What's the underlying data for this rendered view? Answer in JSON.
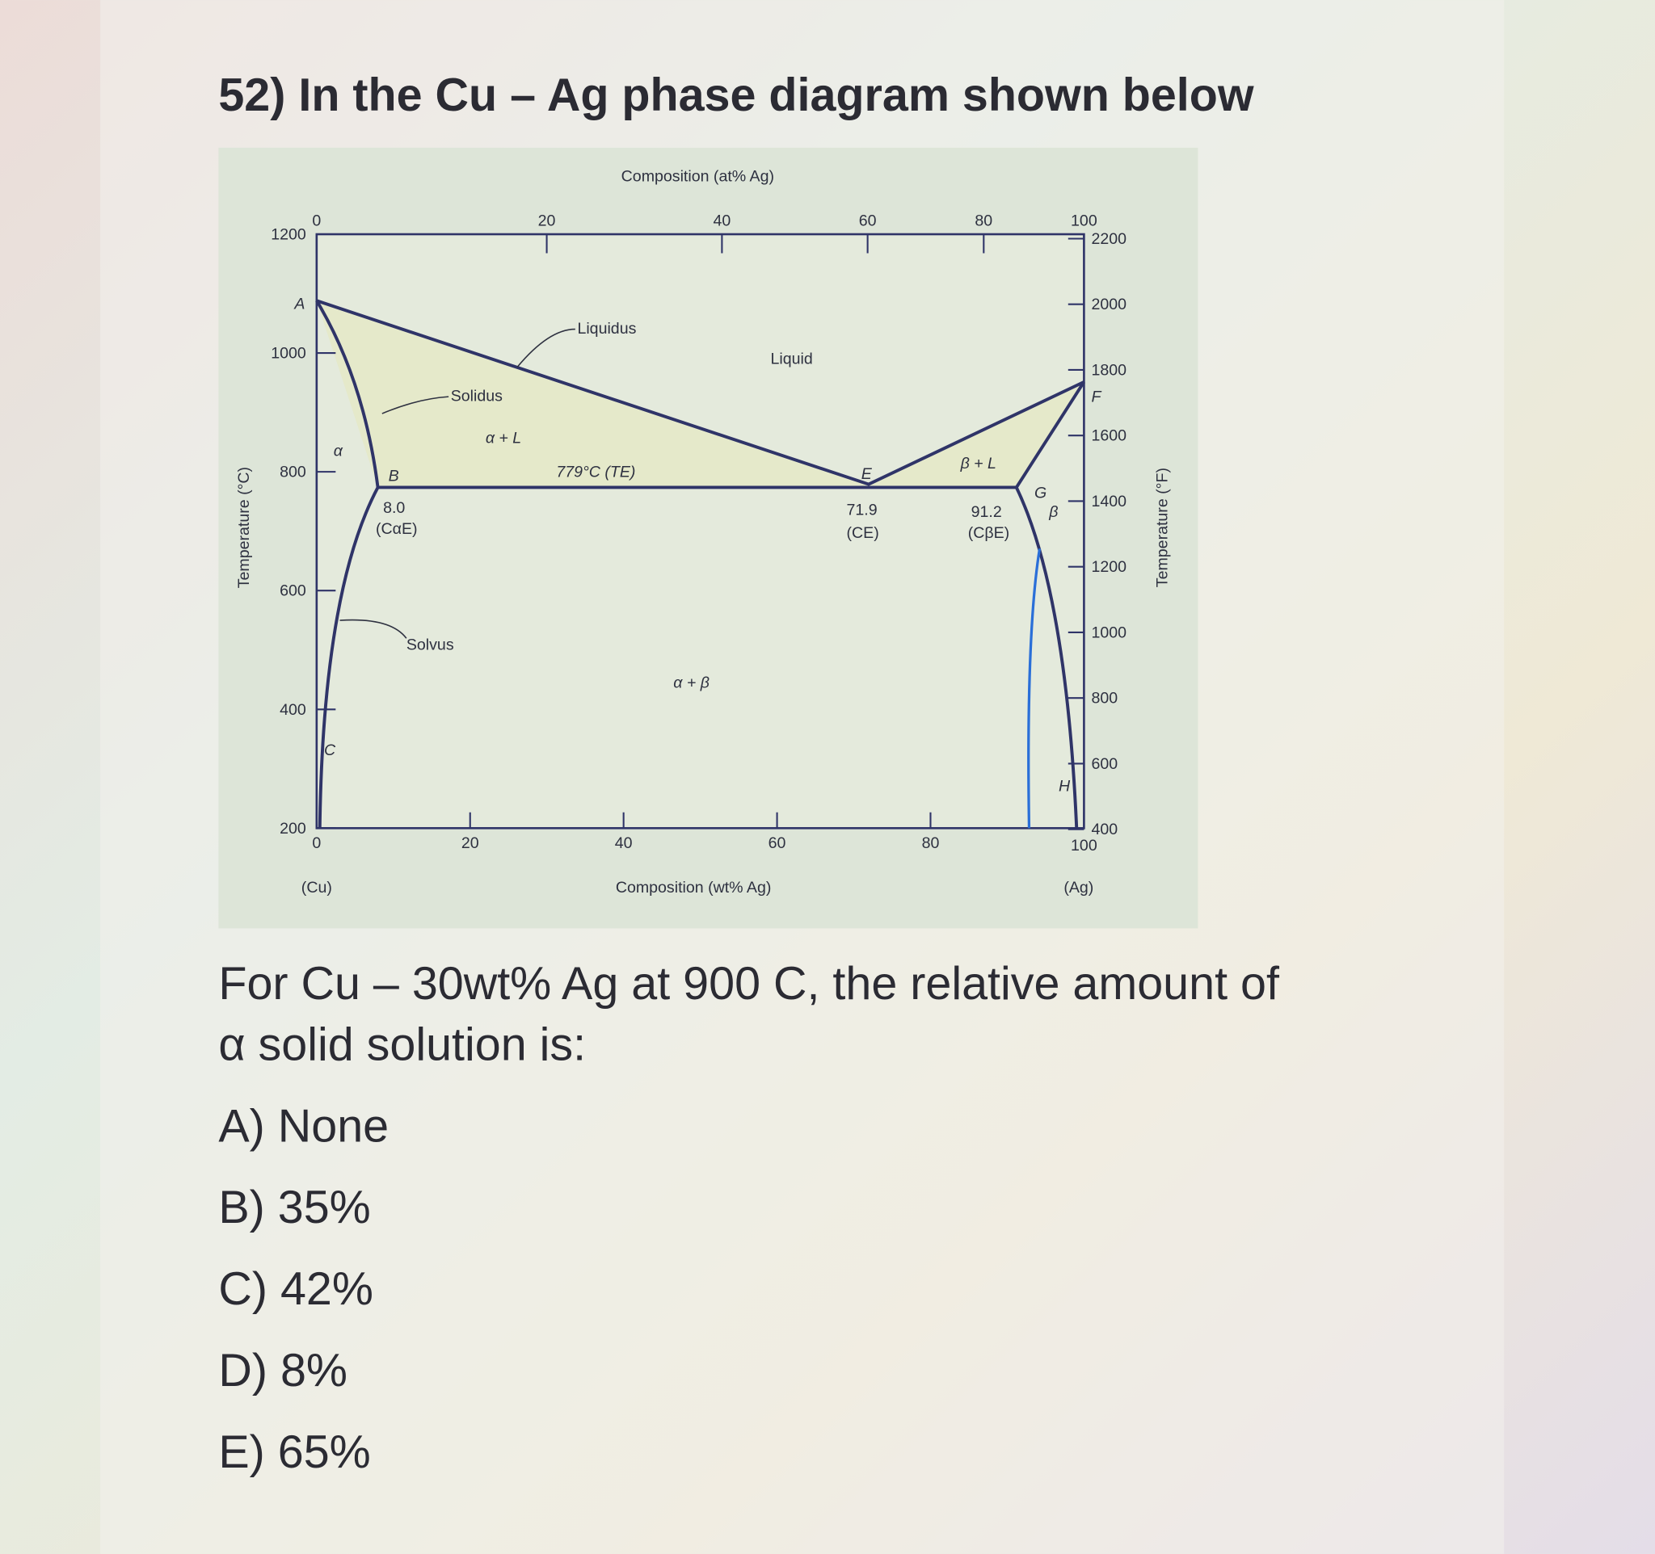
{
  "question": {
    "title": "52) In the Cu – Ag phase diagram shown below",
    "text_lines": [
      "For Cu – 30wt% Ag at 900 C, the relative amount of",
      "α solid solution is:"
    ],
    "options": [
      "A) None",
      "B) 35%",
      "C) 42%",
      "D) 8%",
      "E) 65%"
    ]
  },
  "figure": {
    "top_axis_label": "Composition (at% Ag)",
    "bottom_axis_label": "Composition (wt% Ag)",
    "left_axis_label": "Temperature (°C)",
    "right_axis_label": "Temperature (°F)",
    "top_ticks": [
      "0",
      "20",
      "40",
      "60",
      "80",
      "100"
    ],
    "bottom_ticks": [
      "0",
      "20",
      "40",
      "60",
      "80",
      "100"
    ],
    "left_ticks": [
      "200",
      "400",
      "600",
      "800",
      "1000",
      "1200"
    ],
    "right_ticks": [
      "400",
      "600",
      "800",
      "1000",
      "1200",
      "1400",
      "1600",
      "1800",
      "2000",
      "2200"
    ],
    "left_end_label": "(Cu)",
    "right_end_label": "(Ag)",
    "regions": {
      "liquidus": "Liquidus",
      "liquid": "Liquid",
      "solidus": "Solidus",
      "alpha_l": "α + L",
      "eutectic": "779°C (TE)",
      "beta_l": "β + L",
      "alpha": "α",
      "beta": "β",
      "solvus": "Solvus",
      "alpha_beta": "α + β"
    },
    "points": {
      "A": "A",
      "B": "B",
      "C": "C",
      "E": "E",
      "F": "F",
      "G": "G",
      "H": "H"
    },
    "compositions": {
      "c_alpha_value": "8.0",
      "c_alpha_label": "(CαE)",
      "c_e_value": "71.9",
      "c_e_label": "(CE)",
      "c_beta_value": "91.2",
      "c_beta_label": "(CβE)"
    }
  }
}
